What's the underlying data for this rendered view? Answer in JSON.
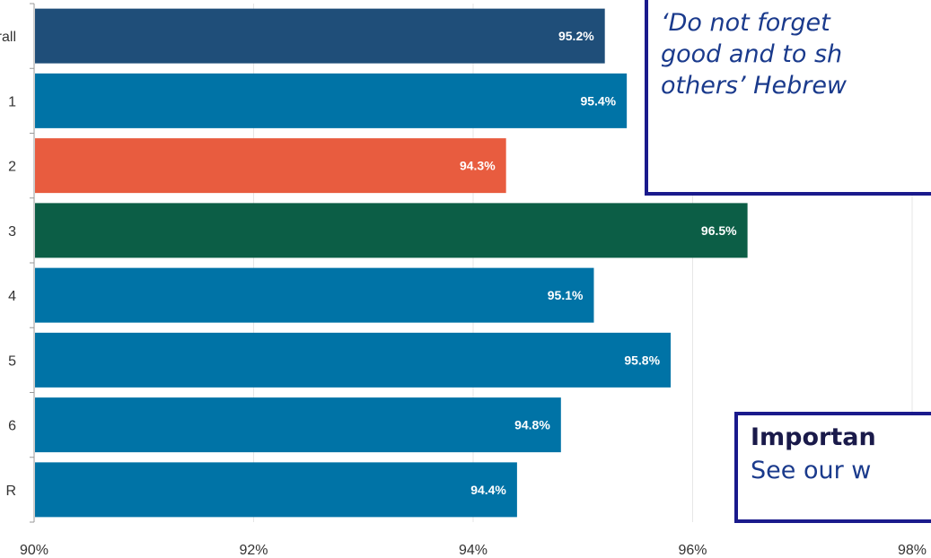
{
  "chart_data": {
    "type": "bar",
    "orientation": "horizontal",
    "categories": [
      "rall",
      "1",
      "2",
      "3",
      "4",
      "5",
      "6",
      "R"
    ],
    "values": [
      95.2,
      95.4,
      94.3,
      96.5,
      95.1,
      95.8,
      94.8,
      94.4
    ],
    "value_labels": [
      "95.2%",
      "95.4%",
      "94.3%",
      "96.5%",
      "95.1%",
      "95.8%",
      "94.8%",
      "94.4%"
    ],
    "bar_colors": [
      "#1f4e79",
      "#0073a6",
      "#e85c3f",
      "#0c5e46",
      "#0073a6",
      "#0073a6",
      "#0073a6",
      "#0073a6"
    ],
    "xlim": [
      90,
      98
    ],
    "xticks": [
      90,
      92,
      94,
      96,
      98
    ],
    "xtick_labels": [
      "90%",
      "92%",
      "94%",
      "96%",
      "98%"
    ],
    "grid": "vertical",
    "title": "",
    "xlabel": "",
    "ylabel": ""
  },
  "quote": {
    "lines": [
      "‘Do not forget",
      "good and to sh",
      "others’ Hebrew"
    ]
  },
  "important": {
    "title": "Importan",
    "body": "See our w"
  },
  "colors": {
    "grid": "#e6e6e6",
    "axis": "#999999",
    "box_border": "#1a1a8c",
    "box_text": "#1a3a8c"
  }
}
